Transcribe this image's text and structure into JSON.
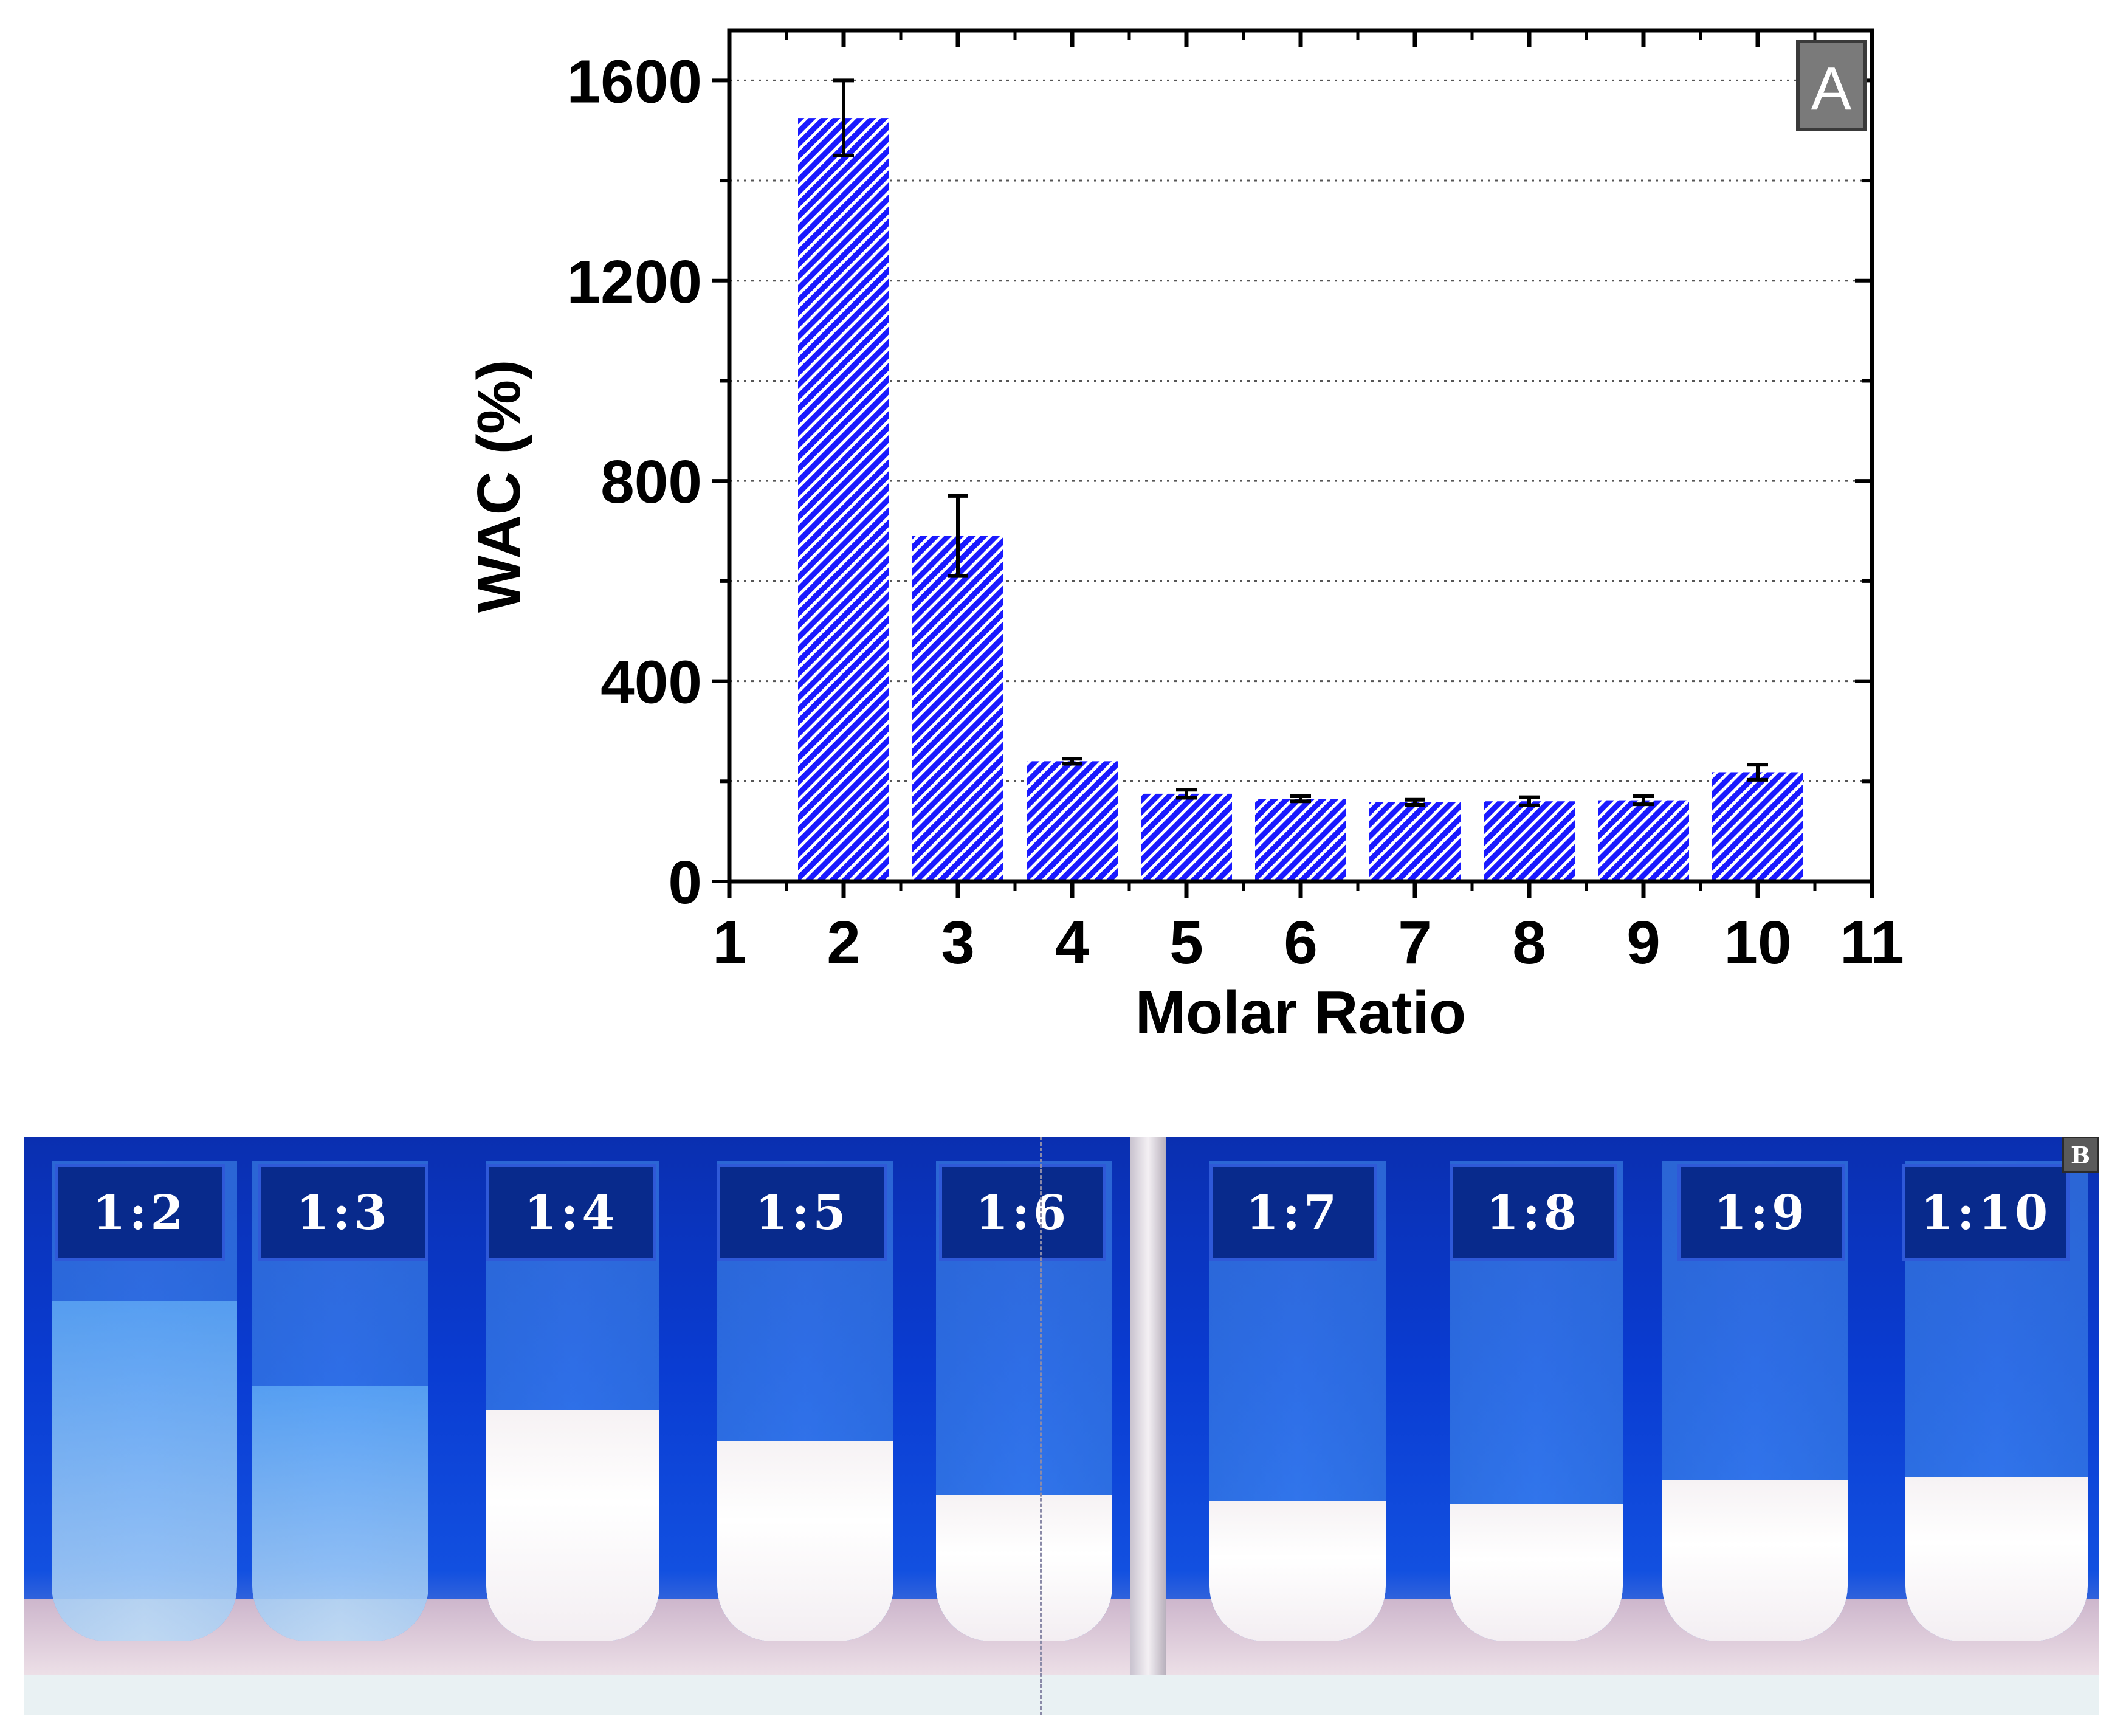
{
  "chart_data": {
    "type": "bar",
    "panel_label": "A",
    "xlabel": "Molar Ratio",
    "ylabel": "WAC (%)",
    "xlim": [
      1,
      11
    ],
    "ylim": [
      0,
      1700
    ],
    "x_ticks": [
      "1",
      "2",
      "3",
      "4",
      "5",
      "6",
      "7",
      "8",
      "9",
      "10",
      "11"
    ],
    "y_ticks": [
      "0",
      "400",
      "800",
      "1200",
      "1600"
    ],
    "grid": "horizontal dotted",
    "bar_color": "#1a1aff",
    "bar_pattern": "diagonal hatch",
    "x": [
      2,
      3,
      4,
      5,
      6,
      7,
      8,
      9,
      10
    ],
    "values": [
      1525,
      690,
      240,
      175,
      165,
      158,
      160,
      162,
      218
    ],
    "errors": [
      75,
      80,
      5,
      8,
      5,
      5,
      8,
      8,
      15
    ]
  },
  "photo": {
    "panel_label": "B",
    "tubes": [
      {
        "label": "1:2",
        "state": "clear"
      },
      {
        "label": "1:3",
        "state": "clear"
      },
      {
        "label": "1:4",
        "state": "gel"
      },
      {
        "label": "1:5",
        "state": "gel"
      },
      {
        "label": "1:6",
        "state": "gel"
      },
      {
        "label": "1:7",
        "state": "gel"
      },
      {
        "label": "1:8",
        "state": "gel"
      },
      {
        "label": "1:9",
        "state": "gel"
      },
      {
        "label": "1:10",
        "state": "gel"
      }
    ]
  },
  "colors": {
    "bar": "#1a1aff",
    "panel_label_bg": "#7a7a7a",
    "tube_label_bg": "#082a8c",
    "photo_background": "#0a3cd2"
  }
}
